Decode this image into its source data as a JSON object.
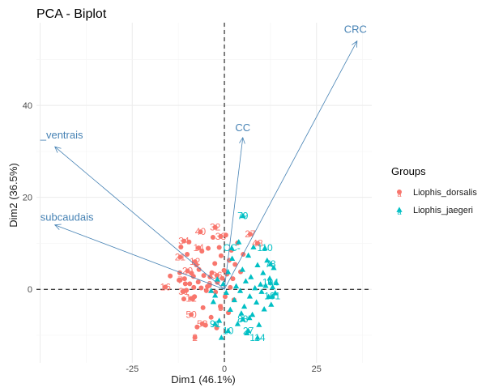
{
  "chart_data": {
    "type": "scatter",
    "title": "PCA - Biplot",
    "xlabel": "Dim1 (46.1%)",
    "ylabel": "Dim2 (36.5%)",
    "xlim": [
      -51,
      40
    ],
    "ylim": [
      -16,
      58
    ],
    "xticks": [
      -25,
      0,
      25
    ],
    "yticks": [
      0,
      20,
      40
    ],
    "reference_lines": {
      "x": 0,
      "y": 0
    },
    "legend": {
      "title": "Groups",
      "position": "right",
      "entries": [
        {
          "name": "Liophis_dorsalis",
          "color": "#F8766D",
          "shape": "circle",
          "key_letter": "a"
        },
        {
          "name": "Liophis_jaegeri",
          "color": "#00BFC4",
          "shape": "triangle",
          "key_letter": "a"
        }
      ]
    },
    "vectors": [
      {
        "name": "CRC",
        "x": 36,
        "y": 54
      },
      {
        "name": "_ventrais",
        "x": -46,
        "y": 31
      },
      {
        "name": "subcaudais",
        "x": -46,
        "y": 14
      },
      {
        "name": "CC",
        "x": 5,
        "y": 33
      }
    ],
    "series": [
      {
        "name": "Liophis_dorsalis",
        "color": "#F8766D",
        "shape": "circle",
        "points": [
          {
            "label": "32",
            "x": -2.5,
            "y": 13.5
          },
          {
            "label": "40",
            "x": -6.5,
            "y": 12.5
          },
          {
            "label": "38",
            "x": -1,
            "y": 11.5
          },
          {
            "label": "34",
            "x": -11,
            "y": 10.5
          },
          {
            "label": "14",
            "x": -7,
            "y": 9
          },
          {
            "label": "27",
            "x": 7,
            "y": 12
          },
          {
            "label": "48",
            "x": 9,
            "y": 10
          },
          {
            "label": "21",
            "x": -12,
            "y": 7
          },
          {
            "label": "12",
            "x": -8,
            "y": 6
          },
          {
            "label": "20",
            "x": -10,
            "y": 4
          },
          {
            "label": "7",
            "x": -12,
            "y": 2
          },
          {
            "label": "16",
            "x": -16,
            "y": 0.5
          },
          {
            "label": "31",
            "x": -11,
            "y": -0.5
          },
          {
            "label": "12",
            "x": -9,
            "y": -2
          },
          {
            "label": "50",
            "x": -9,
            "y": -5.5
          },
          {
            "label": "53",
            "x": -6,
            "y": -7.5
          },
          {
            "label": "5",
            "x": -1,
            "y": -4
          },
          {
            "label": "2",
            "x": -8,
            "y": -10.5
          },
          {
            "label": "36",
            "x": -2,
            "y": 3
          },
          {
            "label": "9",
            "x": -4,
            "y": 1
          },
          {
            "label": "",
            "x": -14.7,
            "y": 2.9
          },
          {
            "label": "",
            "x": -10.6,
            "y": 1.2
          },
          {
            "label": "",
            "x": -8.3,
            "y": 0.4
          },
          {
            "label": "",
            "x": -12.3,
            "y": 2.0
          },
          {
            "label": "",
            "x": -12.1,
            "y": 3.6
          },
          {
            "label": "",
            "x": -11.8,
            "y": 9.2
          },
          {
            "label": "",
            "x": -11.3,
            "y": -0.5
          },
          {
            "label": "",
            "x": -11.0,
            "y": -2.1
          },
          {
            "label": "",
            "x": -10.8,
            "y": 2.3
          },
          {
            "label": "",
            "x": -10.3,
            "y": -0.2
          },
          {
            "label": "",
            "x": -10.1,
            "y": 7.6
          },
          {
            "label": "",
            "x": -9.6,
            "y": 10.3
          },
          {
            "label": "",
            "x": -9.4,
            "y": 1.2
          },
          {
            "label": "",
            "x": -8.9,
            "y": 3.5
          },
          {
            "label": "",
            "x": -8.6,
            "y": -2.1
          },
          {
            "label": "",
            "x": -8.4,
            "y": 2.8
          },
          {
            "label": "",
            "x": -8.1,
            "y": -1.6
          },
          {
            "label": "",
            "x": -7.6,
            "y": 5.3
          },
          {
            "label": "",
            "x": -7.4,
            "y": -8.2
          },
          {
            "label": "",
            "x": -7.1,
            "y": 1.6
          },
          {
            "label": "",
            "x": -6.9,
            "y": 4.3
          },
          {
            "label": "",
            "x": -6.3,
            "y": 0.3
          },
          {
            "label": "",
            "x": -6.1,
            "y": 8.3
          },
          {
            "label": "",
            "x": -5.8,
            "y": -4.0
          },
          {
            "label": "",
            "x": -5.6,
            "y": 3.0
          },
          {
            "label": "",
            "x": -5.1,
            "y": -7.8
          },
          {
            "label": "",
            "x": -4.9,
            "y": -0.3
          },
          {
            "label": "",
            "x": -4.6,
            "y": 0.6
          },
          {
            "label": "",
            "x": -4.4,
            "y": 8.9
          },
          {
            "label": "",
            "x": -3.9,
            "y": 2.7
          },
          {
            "label": "",
            "x": -3.6,
            "y": -6.1
          },
          {
            "label": "",
            "x": -3.4,
            "y": 3.6
          },
          {
            "label": "",
            "x": -3.1,
            "y": 11.3
          },
          {
            "label": "",
            "x": -2.6,
            "y": 5.6
          },
          {
            "label": "",
            "x": -2.4,
            "y": -0.6
          },
          {
            "label": "",
            "x": -2.1,
            "y": -8.4
          },
          {
            "label": "",
            "x": -1.9,
            "y": 1.5
          },
          {
            "label": "",
            "x": -1.4,
            "y": 9.1
          },
          {
            "label": "",
            "x": -1.1,
            "y": -3.7
          },
          {
            "label": "",
            "x": -0.9,
            "y": 7.3
          },
          {
            "label": "",
            "x": -0.6,
            "y": 2.4
          },
          {
            "label": "",
            "x": -0.1,
            "y": 4.1
          },
          {
            "label": "",
            "x": 0.2,
            "y": -1.6
          },
          {
            "label": "",
            "x": 0.4,
            "y": 11.8
          },
          {
            "label": "",
            "x": 0.7,
            "y": 3.3
          },
          {
            "label": "",
            "x": 1.1,
            "y": -5.1
          },
          {
            "label": "",
            "x": 1.3,
            "y": 6.3
          },
          {
            "label": "",
            "x": 1.6,
            "y": 0.4
          },
          {
            "label": "",
            "x": 1.9,
            "y": 8.5
          },
          {
            "label": "",
            "x": 2.3,
            "y": 2.3
          },
          {
            "label": "",
            "x": 2.6,
            "y": -2.3
          },
          {
            "label": "",
            "x": 2.9,
            "y": 5.4
          },
          {
            "label": "",
            "x": 3.6,
            "y": 10.1
          },
          {
            "label": "",
            "x": 4.4,
            "y": 3.8
          },
          {
            "label": "",
            "x": 5.1,
            "y": 7.6
          }
        ]
      },
      {
        "name": "Liophis_jaegeri",
        "color": "#00BFC4",
        "shape": "triangle",
        "points": [
          {
            "label": "79",
            "x": 5,
            "y": 16
          },
          {
            "label": "CC-",
            "x": 2,
            "y": 9
          },
          {
            "label": "110",
            "x": 11,
            "y": 9
          },
          {
            "label": "78",
            "x": 12.5,
            "y": 5.5
          },
          {
            "label": "104",
            "x": 12.5,
            "y": 1.5
          },
          {
            "label": "101",
            "x": 13,
            "y": -1.5
          },
          {
            "label": "88",
            "x": 5,
            "y": -6.5
          },
          {
            "label": "27",
            "x": 6.5,
            "y": -9
          },
          {
            "label": "114",
            "x": 9,
            "y": -10.5
          },
          {
            "label": "91",
            "x": -2.5,
            "y": -7.5
          },
          {
            "label": "10",
            "x": 1,
            "y": -9
          },
          {
            "label": "",
            "x": -3.6,
            "y": -0.3
          },
          {
            "label": "",
            "x": -3.0,
            "y": -2.7
          },
          {
            "label": "",
            "x": -2.5,
            "y": -1.3
          },
          {
            "label": "",
            "x": -1.9,
            "y": 2.2
          },
          {
            "label": "",
            "x": -1.4,
            "y": -6.8
          },
          {
            "label": "",
            "x": -0.8,
            "y": -10.5
          },
          {
            "label": "",
            "x": -0.3,
            "y": 1.2
          },
          {
            "label": "",
            "x": 0.5,
            "y": -0.7
          },
          {
            "label": "",
            "x": 1.0,
            "y": 3.8
          },
          {
            "label": "",
            "x": 1.6,
            "y": -4.4
          },
          {
            "label": "",
            "x": 2.1,
            "y": 6.7
          },
          {
            "label": "",
            "x": 2.7,
            "y": -2.3
          },
          {
            "label": "",
            "x": 3.2,
            "y": 0.7
          },
          {
            "label": "",
            "x": 3.6,
            "y": -7.5
          },
          {
            "label": "",
            "x": 3.9,
            "y": 10.3
          },
          {
            "label": "",
            "x": 4.3,
            "y": -0.3
          },
          {
            "label": "",
            "x": 4.9,
            "y": 4.3
          },
          {
            "label": "",
            "x": 5.4,
            "y": -3.7
          },
          {
            "label": "",
            "x": 5.8,
            "y": 1.8
          },
          {
            "label": "",
            "x": 6.1,
            "y": -9.5
          },
          {
            "label": "",
            "x": 6.5,
            "y": 7.4
          },
          {
            "label": "",
            "x": 6.9,
            "y": -1.5
          },
          {
            "label": "",
            "x": 7.2,
            "y": 2.7
          },
          {
            "label": "",
            "x": 7.6,
            "y": -5.5
          },
          {
            "label": "",
            "x": 7.9,
            "y": 9.2
          },
          {
            "label": "",
            "x": 8.3,
            "y": 0.3
          },
          {
            "label": "",
            "x": 8.7,
            "y": -2.8
          },
          {
            "label": "",
            "x": 9.0,
            "y": 5.3
          },
          {
            "label": "",
            "x": 9.4,
            "y": -7.7
          },
          {
            "label": "",
            "x": 9.8,
            "y": 1.1
          },
          {
            "label": "",
            "x": 10.1,
            "y": -0.5
          },
          {
            "label": "",
            "x": 10.5,
            "y": 3.6
          },
          {
            "label": "",
            "x": 10.8,
            "y": -4.3
          },
          {
            "label": "",
            "x": 11.2,
            "y": 0.8
          },
          {
            "label": "",
            "x": 11.6,
            "y": 6.3
          },
          {
            "label": "",
            "x": 12.0,
            "y": -1.6
          },
          {
            "label": "",
            "x": 12.3,
            "y": 2.4
          },
          {
            "label": "",
            "x": 12.7,
            "y": -3.3
          },
          {
            "label": "",
            "x": 13.1,
            "y": 0.5
          },
          {
            "label": "",
            "x": 13.4,
            "y": 4.7
          },
          {
            "label": "",
            "x": 13.8,
            "y": -0.8
          },
          {
            "label": "",
            "x": 14.1,
            "y": 1.4
          },
          {
            "label": "",
            "x": 4.6,
            "y": -5.2
          },
          {
            "label": "",
            "x": 6.8,
            "y": -6.2
          }
        ]
      }
    ]
  }
}
